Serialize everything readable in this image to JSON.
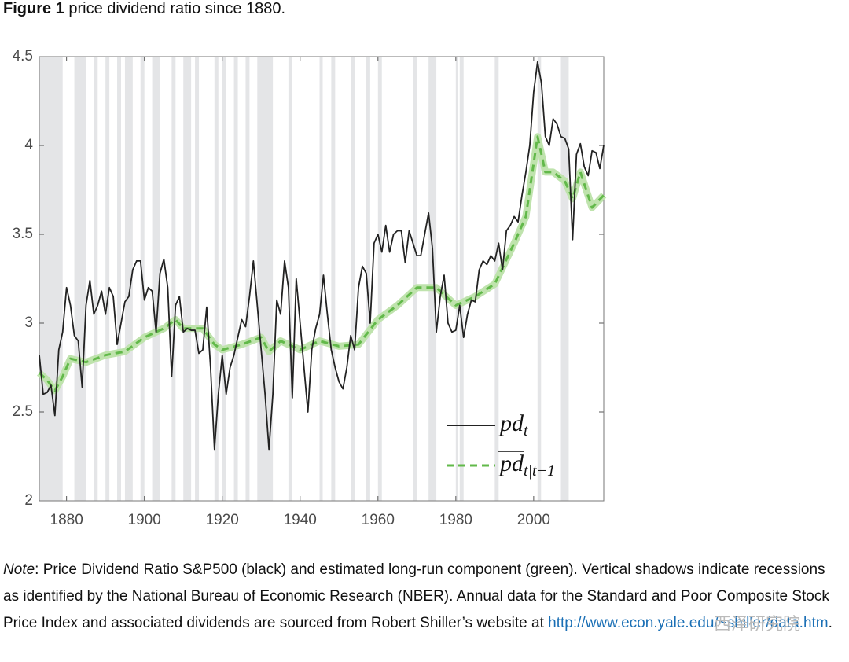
{
  "figure_label": "Figure 1",
  "note": {
    "label": "Note",
    "text": ": Price Dividend Ratio S&P500 (black) and estimated long-run component (green).  Vertical shadows indicate recessions as identified by the National Bureau of Economic Research (NBER). Annual data for the Standard and Poor Composite Stock Price Index and associated dividends are sourced from Robert Shiller’s website at",
    "link": "http://www.econ.yale.edu/~shiller/data.htm",
    "end": "."
  },
  "watermark": "西泽研究院",
  "chart_data": {
    "type": "line",
    "title": "price dividend ratio since 1880.",
    "xlim": [
      1873,
      2018
    ],
    "xticks": [
      1880,
      1900,
      1920,
      1940,
      1960,
      1980,
      2000
    ],
    "ylim": [
      2,
      4.5
    ],
    "yticks": [
      2,
      2.5,
      3,
      3.5,
      4,
      4.5
    ],
    "recession_color": "#e4e5e7",
    "recessions": [
      [
        1873,
        1879
      ],
      [
        1882,
        1885
      ],
      [
        1887,
        1888
      ],
      [
        1890,
        1891
      ],
      [
        1893,
        1894
      ],
      [
        1895,
        1897
      ],
      [
        1899,
        1900
      ],
      [
        1902,
        1904
      ],
      [
        1907,
        1908
      ],
      [
        1910,
        1912
      ],
      [
        1913,
        1914
      ],
      [
        1918,
        1919
      ],
      [
        1920,
        1921
      ],
      [
        1923,
        1924
      ],
      [
        1926,
        1927
      ],
      [
        1929,
        1933
      ],
      [
        1937,
        1938
      ],
      [
        1945,
        1945.8
      ],
      [
        1948,
        1949
      ],
      [
        1953,
        1954
      ],
      [
        1957,
        1958
      ],
      [
        1960,
        1961
      ],
      [
        1969,
        1970
      ],
      [
        1973,
        1975
      ],
      [
        1980,
        1980.6
      ],
      [
        1981,
        1982
      ],
      [
        1990,
        1991
      ],
      [
        2001,
        2001.9
      ],
      [
        2007,
        2009
      ]
    ],
    "series": [
      {
        "name": "pd",
        "name_subscript": "t",
        "color": "#222222",
        "dashed": false,
        "x": [
          1873,
          1874,
          1875,
          1876,
          1877,
          1878,
          1879,
          1880,
          1881,
          1882,
          1883,
          1884,
          1885,
          1886,
          1887,
          1888,
          1889,
          1890,
          1891,
          1892,
          1893,
          1894,
          1895,
          1896,
          1897,
          1898,
          1899,
          1900,
          1901,
          1902,
          1903,
          1904,
          1905,
          1906,
          1907,
          1908,
          1909,
          1910,
          1911,
          1912,
          1913,
          1914,
          1915,
          1916,
          1917,
          1918,
          1919,
          1920,
          1921,
          1922,
          1923,
          1924,
          1925,
          1926,
          1927,
          1928,
          1929,
          1930,
          1931,
          1932,
          1933,
          1934,
          1935,
          1936,
          1937,
          1938,
          1939,
          1940,
          1941,
          1942,
          1943,
          1944,
          1945,
          1946,
          1947,
          1948,
          1949,
          1950,
          1951,
          1952,
          1953,
          1954,
          1955,
          1956,
          1957,
          1958,
          1959,
          1960,
          1961,
          1962,
          1963,
          1964,
          1965,
          1966,
          1967,
          1968,
          1969,
          1970,
          1971,
          1972,
          1973,
          1974,
          1975,
          1976,
          1977,
          1978,
          1979,
          1980,
          1981,
          1982,
          1983,
          1984,
          1985,
          1986,
          1987,
          1988,
          1989,
          1990,
          1991,
          1992,
          1993,
          1994,
          1995,
          1996,
          1997,
          1998,
          1999,
          2000,
          2001,
          2002,
          2003,
          2004,
          2005,
          2006,
          2007,
          2008,
          2009,
          2010,
          2011,
          2012,
          2013,
          2014,
          2015,
          2016,
          2017,
          2018
        ],
        "values": [
          2.82,
          2.6,
          2.61,
          2.65,
          2.48,
          2.85,
          2.95,
          3.2,
          3.1,
          2.93,
          2.9,
          2.64,
          3.1,
          3.24,
          3.05,
          3.1,
          3.18,
          3.05,
          3.2,
          3.15,
          2.88,
          3.0,
          3.12,
          3.15,
          3.3,
          3.35,
          3.35,
          3.13,
          3.2,
          3.18,
          2.95,
          3.28,
          3.36,
          3.2,
          2.7,
          3.1,
          3.15,
          2.95,
          2.97,
          2.96,
          2.96,
          2.83,
          2.85,
          3.09,
          2.75,
          2.29,
          2.6,
          2.82,
          2.6,
          2.75,
          2.82,
          2.92,
          3.02,
          2.98,
          3.15,
          3.35,
          3.1,
          2.85,
          2.6,
          2.29,
          2.6,
          3.13,
          3.05,
          3.35,
          3.2,
          2.58,
          3.25,
          3.0,
          2.75,
          2.5,
          2.85,
          2.97,
          3.05,
          3.27,
          3.05,
          2.85,
          2.75,
          2.67,
          2.63,
          2.75,
          2.93,
          2.85,
          3.2,
          3.32,
          3.28,
          3.0,
          3.45,
          3.5,
          3.4,
          3.55,
          3.4,
          3.5,
          3.52,
          3.52,
          3.34,
          3.52,
          3.45,
          3.38,
          3.38,
          3.5,
          3.62,
          3.42,
          2.95,
          3.15,
          3.27,
          3.0,
          2.95,
          2.96,
          3.1,
          2.92,
          3.05,
          3.13,
          3.12,
          3.3,
          3.35,
          3.33,
          3.38,
          3.35,
          3.45,
          3.3,
          3.52,
          3.55,
          3.6,
          3.57,
          3.72,
          3.85,
          4.0,
          4.3,
          4.47,
          4.35,
          4.05,
          4.0,
          4.15,
          4.12,
          4.05,
          4.04,
          3.98,
          3.47,
          3.95,
          4.01,
          3.88,
          3.83,
          3.97,
          3.96,
          3.87,
          4.0
        ]
      },
      {
        "name": "pd",
        "name_subscript": "t|t−1",
        "overline": true,
        "color": "#62b94a",
        "band_color": "#bfe3ad",
        "dashed": true,
        "x": [
          1873,
          1875,
          1877,
          1879,
          1881,
          1885,
          1890,
          1895,
          1900,
          1905,
          1908,
          1910,
          1915,
          1918,
          1920,
          1925,
          1930,
          1932,
          1935,
          1940,
          1945,
          1950,
          1955,
          1960,
          1965,
          1970,
          1975,
          1980,
          1985,
          1990,
          1995,
          1998,
          2001,
          2003,
          2005,
          2008,
          2010,
          2012,
          2015,
          2018
        ],
        "values": [
          2.72,
          2.68,
          2.62,
          2.7,
          2.8,
          2.78,
          2.82,
          2.84,
          2.92,
          2.97,
          3.02,
          2.97,
          2.97,
          2.88,
          2.85,
          2.88,
          2.92,
          2.84,
          2.9,
          2.85,
          2.9,
          2.87,
          2.88,
          3.02,
          3.1,
          3.2,
          3.2,
          3.1,
          3.15,
          3.22,
          3.45,
          3.6,
          4.05,
          3.85,
          3.85,
          3.8,
          3.7,
          3.85,
          3.65,
          3.72
        ]
      }
    ]
  }
}
